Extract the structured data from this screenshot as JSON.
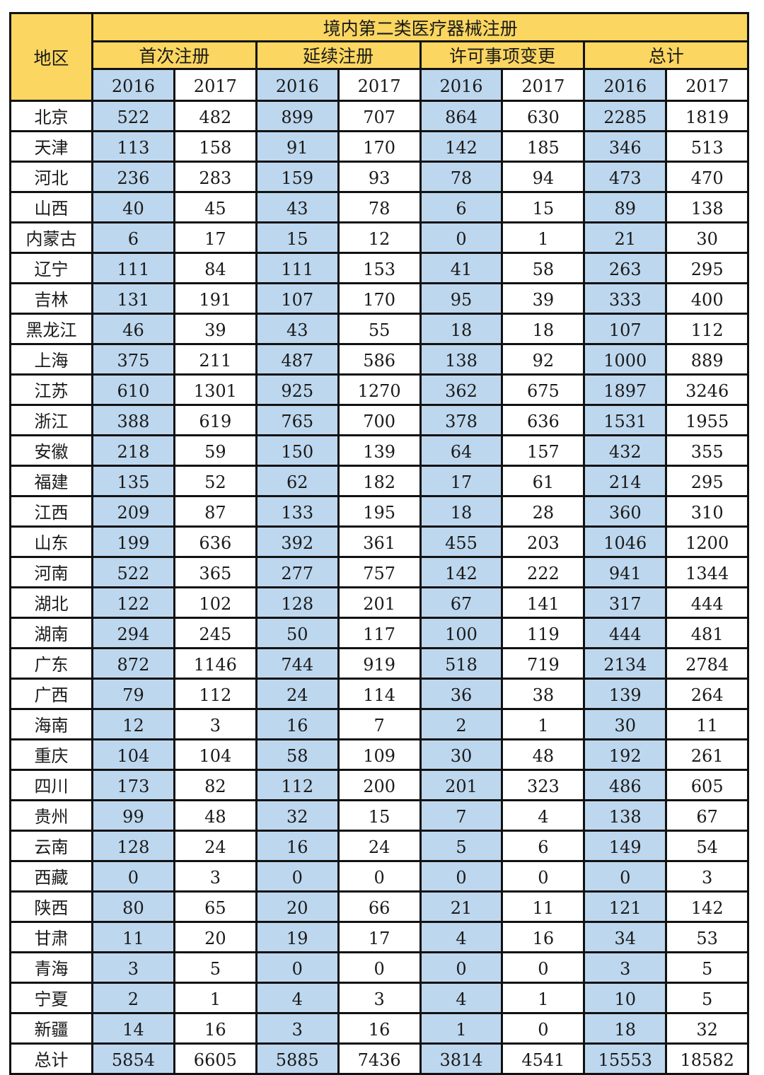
{
  "header": {
    "region_label": "地区",
    "title": "境内第二类医疗器械注册",
    "groups": [
      "首次注册",
      "延续注册",
      "许可事项变更",
      "总计"
    ],
    "years": [
      "2016",
      "2017"
    ]
  },
  "colors": {
    "header_bg": "#FBD660",
    "highlight_col_bg": "#BDD7EE"
  },
  "rows": [
    {
      "region": "北京",
      "values": [
        "522",
        "482",
        "899",
        "707",
        "864",
        "630",
        "2285",
        "1819"
      ]
    },
    {
      "region": "天津",
      "values": [
        "113",
        "158",
        "91",
        "170",
        "142",
        "185",
        "346",
        "513"
      ]
    },
    {
      "region": "河北",
      "values": [
        "236",
        "283",
        "159",
        "93",
        "78",
        "94",
        "473",
        "470"
      ]
    },
    {
      "region": "山西",
      "values": [
        "40",
        "45",
        "43",
        "78",
        "6",
        "15",
        "89",
        "138"
      ]
    },
    {
      "region": "内蒙古",
      "values": [
        "6",
        "17",
        "15",
        "12",
        "0",
        "1",
        "21",
        "30"
      ]
    },
    {
      "region": "辽宁",
      "values": [
        "111",
        "84",
        "111",
        "153",
        "41",
        "58",
        "263",
        "295"
      ]
    },
    {
      "region": "吉林",
      "values": [
        "131",
        "191",
        "107",
        "170",
        "95",
        "39",
        "333",
        "400"
      ]
    },
    {
      "region": "黑龙江",
      "values": [
        "46",
        "39",
        "43",
        "55",
        "18",
        "18",
        "107",
        "112"
      ]
    },
    {
      "region": "上海",
      "values": [
        "375",
        "211",
        "487",
        "586",
        "138",
        "92",
        "1000",
        "889"
      ]
    },
    {
      "region": "江苏",
      "values": [
        "610",
        "1301",
        "925",
        "1270",
        "362",
        "675",
        "1897",
        "3246"
      ]
    },
    {
      "region": "浙江",
      "values": [
        "388",
        "619",
        "765",
        "700",
        "378",
        "636",
        "1531",
        "1955"
      ]
    },
    {
      "region": "安徽",
      "values": [
        "218",
        "59",
        "150",
        "139",
        "64",
        "157",
        "432",
        "355"
      ]
    },
    {
      "region": "福建",
      "values": [
        "135",
        "52",
        "62",
        "182",
        "17",
        "61",
        "214",
        "295"
      ]
    },
    {
      "region": "江西",
      "values": [
        "209",
        "87",
        "133",
        "195",
        "18",
        "28",
        "360",
        "310"
      ]
    },
    {
      "region": "山东",
      "values": [
        "199",
        "636",
        "392",
        "361",
        "455",
        "203",
        "1046",
        "1200"
      ]
    },
    {
      "region": "河南",
      "values": [
        "522",
        "365",
        "277",
        "757",
        "142",
        "222",
        "941",
        "1344"
      ]
    },
    {
      "region": "湖北",
      "values": [
        "122",
        "102",
        "128",
        "201",
        "67",
        "141",
        "317",
        "444"
      ]
    },
    {
      "region": "湖南",
      "values": [
        "294",
        "245",
        "50",
        "117",
        "100",
        "119",
        "444",
        "481"
      ]
    },
    {
      "region": "广东",
      "values": [
        "872",
        "1146",
        "744",
        "919",
        "518",
        "719",
        "2134",
        "2784"
      ]
    },
    {
      "region": "广西",
      "values": [
        "79",
        "112",
        "24",
        "114",
        "36",
        "38",
        "139",
        "264"
      ]
    },
    {
      "region": "海南",
      "values": [
        "12",
        "3",
        "16",
        "7",
        "2",
        "1",
        "30",
        "11"
      ]
    },
    {
      "region": "重庆",
      "values": [
        "104",
        "104",
        "58",
        "109",
        "30",
        "48",
        "192",
        "261"
      ]
    },
    {
      "region": "四川",
      "values": [
        "173",
        "82",
        "112",
        "200",
        "201",
        "323",
        "486",
        "605"
      ]
    },
    {
      "region": "贵州",
      "values": [
        "99",
        "48",
        "32",
        "15",
        "7",
        "4",
        "138",
        "67"
      ]
    },
    {
      "region": "云南",
      "values": [
        "128",
        "24",
        "16",
        "24",
        "5",
        "6",
        "149",
        "54"
      ]
    },
    {
      "region": "西藏",
      "values": [
        "0",
        "3",
        "0",
        "0",
        "0",
        "0",
        "0",
        "3"
      ]
    },
    {
      "region": "陕西",
      "values": [
        "80",
        "65",
        "20",
        "66",
        "21",
        "11",
        "121",
        "142"
      ]
    },
    {
      "region": "甘肃",
      "values": [
        "11",
        "20",
        "19",
        "17",
        "4",
        "16",
        "34",
        "53"
      ]
    },
    {
      "region": "青海",
      "values": [
        "3",
        "5",
        "0",
        "0",
        "0",
        "0",
        "3",
        "5"
      ]
    },
    {
      "region": "宁夏",
      "values": [
        "2",
        "1",
        "4",
        "3",
        "4",
        "1",
        "10",
        "5"
      ]
    },
    {
      "region": "新疆",
      "values": [
        "14",
        "16",
        "3",
        "16",
        "1",
        "0",
        "18",
        "32"
      ]
    },
    {
      "region": "总计",
      "values": [
        "5854",
        "6605",
        "5885",
        "7436",
        "3814",
        "4541",
        "15553",
        "18582"
      ]
    }
  ]
}
